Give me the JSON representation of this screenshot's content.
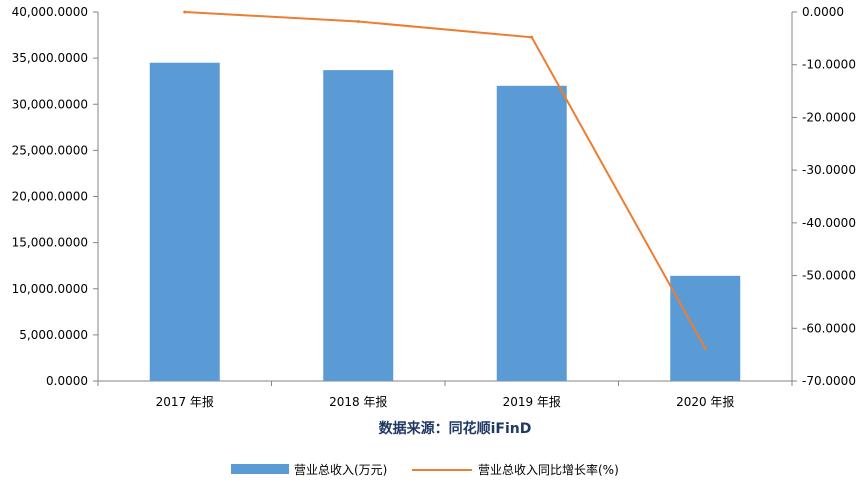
{
  "chart_data": {
    "type": "bar",
    "categories": [
      "2017 年报",
      "2018 年报",
      "2019 年报",
      "2020 年报"
    ],
    "series": [
      {
        "name": "营业总收入(万元)",
        "type": "bar",
        "axis": "left",
        "color": "#5b9bd5",
        "values": [
          34500,
          33700,
          32000,
          11400
        ]
      },
      {
        "name": "营业总收入同比增长率(%)",
        "type": "line",
        "axis": "right",
        "color": "#ed7d31",
        "values": [
          0.0,
          -1.8,
          -4.8,
          -63.8
        ]
      }
    ],
    "y_left": {
      "min": 0,
      "max": 40000,
      "step": 5000,
      "tick_labels": [
        "0.0000",
        "5,000.0000",
        "10,000.0000",
        "15,000.0000",
        "20,000.0000",
        "25,000.0000",
        "30,000.0000",
        "35,000.0000",
        "40,000.0000"
      ]
    },
    "y_right": {
      "min": -70,
      "max": 0,
      "step": 10,
      "tick_labels": [
        "0.0000",
        "-10.0000",
        "-20.0000",
        "-30.0000",
        "-40.0000",
        "-50.0000",
        "-60.0000",
        "-70.0000"
      ]
    },
    "source": "数据来源：同花顺iFinD",
    "legend_position": "bottom",
    "grid": false
  }
}
